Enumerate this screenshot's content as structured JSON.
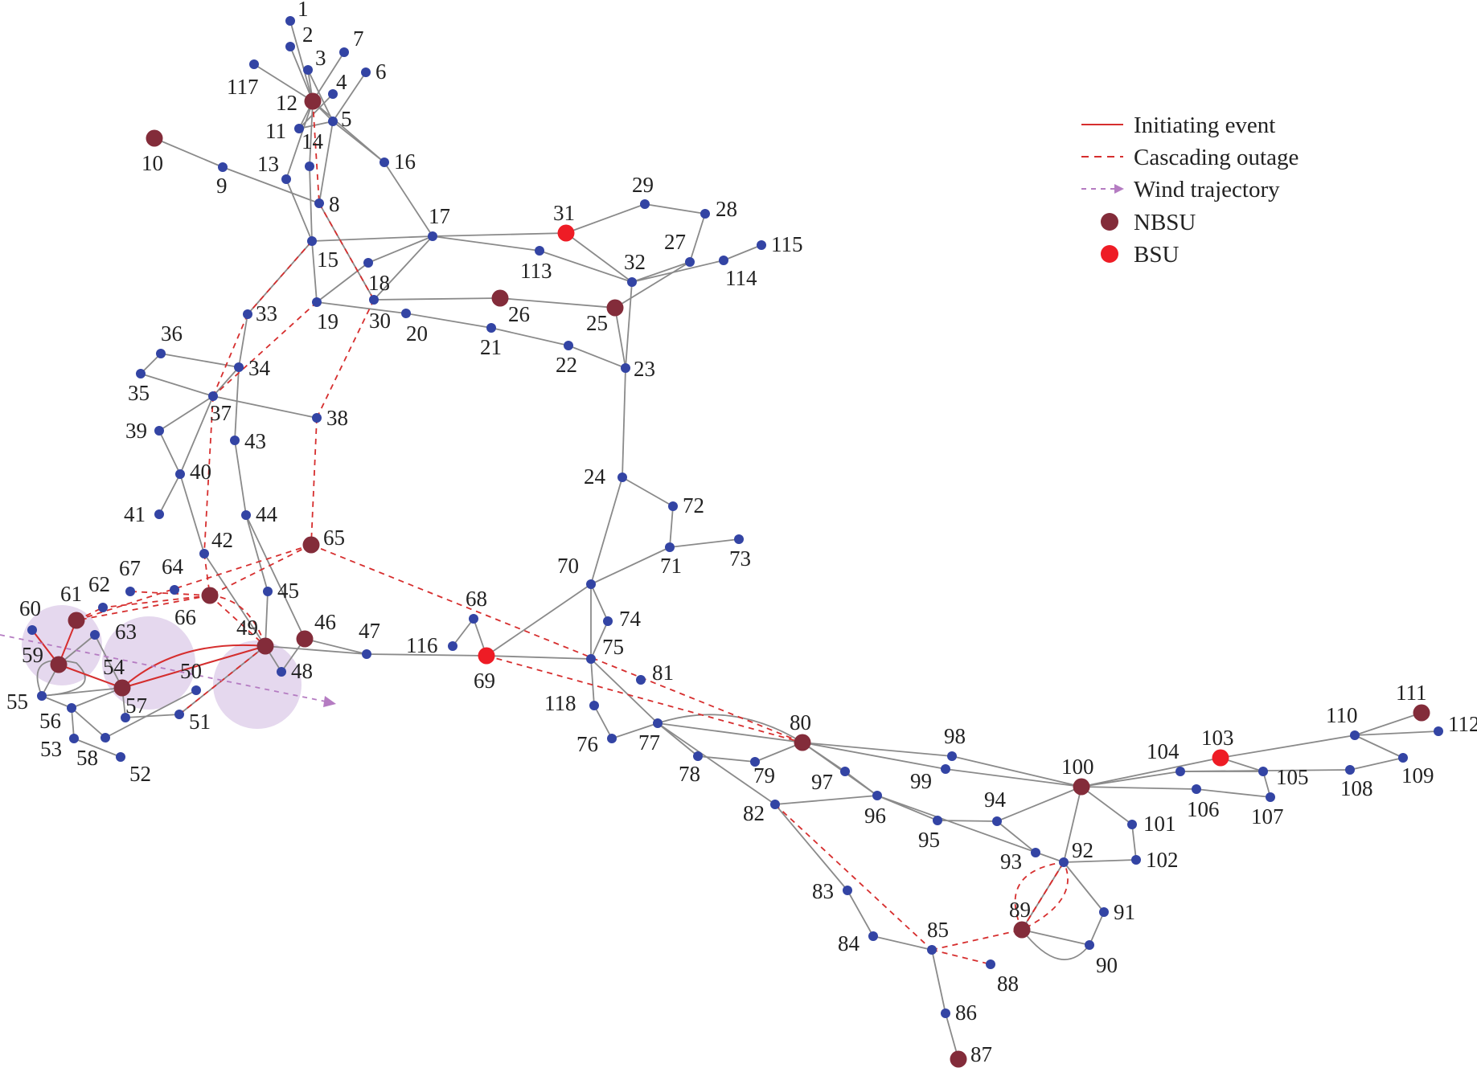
{
  "colors": {
    "background": "#ffffff",
    "line": "#8a8a8a",
    "bus": "#3344a4",
    "nbsu": "#832c3a",
    "bsu": "#ee1c25",
    "initiating": "#d62e2e",
    "cascading": "#d62e2e",
    "wind": "#b57cc2",
    "wind_zone": "#dccbe8"
  },
  "legend": {
    "items": [
      {
        "key": "initiating",
        "label": "Initiating event",
        "kind": "solid-line"
      },
      {
        "key": "cascading",
        "label": "Cascading outage",
        "kind": "dashed-line"
      },
      {
        "key": "wind",
        "label": "Wind trajectory",
        "kind": "dashed-arrow"
      },
      {
        "key": "nbsu",
        "label": "NBSU",
        "kind": "node"
      },
      {
        "key": "bsu",
        "label": "BSU",
        "kind": "node"
      }
    ]
  },
  "network": {
    "nbsu_buses": [
      "10",
      "12",
      "26",
      "25",
      "46",
      "49",
      "54",
      "59",
      "61",
      "65",
      "66",
      "80",
      "87",
      "89",
      "100",
      "111"
    ],
    "bsu_buses": [
      "31",
      "69",
      "103"
    ],
    "buses": [
      {
        "id": "1",
        "label": "1"
      },
      {
        "id": "2",
        "label": "2"
      },
      {
        "id": "3",
        "label": "3"
      },
      {
        "id": "4",
        "label": "4"
      },
      {
        "id": "5",
        "label": "5"
      },
      {
        "id": "6",
        "label": "6"
      },
      {
        "id": "7",
        "label": "7"
      },
      {
        "id": "8",
        "label": "8"
      },
      {
        "id": "9",
        "label": "9"
      },
      {
        "id": "10",
        "label": "10"
      },
      {
        "id": "11",
        "label": "11"
      },
      {
        "id": "12",
        "label": "12"
      },
      {
        "id": "13",
        "label": "13"
      },
      {
        "id": "14",
        "label": "14"
      },
      {
        "id": "15",
        "label": "15"
      },
      {
        "id": "16",
        "label": "16"
      },
      {
        "id": "17",
        "label": "17"
      },
      {
        "id": "18",
        "label": "18"
      },
      {
        "id": "19",
        "label": "19"
      },
      {
        "id": "20",
        "label": "20"
      },
      {
        "id": "21",
        "label": "21"
      },
      {
        "id": "22",
        "label": "22"
      },
      {
        "id": "23",
        "label": "23"
      },
      {
        "id": "24",
        "label": "24"
      },
      {
        "id": "25",
        "label": "25"
      },
      {
        "id": "26",
        "label": "26"
      },
      {
        "id": "27",
        "label": "27"
      },
      {
        "id": "28",
        "label": "28"
      },
      {
        "id": "29",
        "label": "29"
      },
      {
        "id": "30",
        "label": "30"
      },
      {
        "id": "31",
        "label": "31"
      },
      {
        "id": "32",
        "label": "32"
      },
      {
        "id": "33",
        "label": "33"
      },
      {
        "id": "34",
        "label": "34"
      },
      {
        "id": "35",
        "label": "35"
      },
      {
        "id": "36",
        "label": "36"
      },
      {
        "id": "37",
        "label": "37"
      },
      {
        "id": "38",
        "label": "38"
      },
      {
        "id": "39",
        "label": "39"
      },
      {
        "id": "40",
        "label": "40"
      },
      {
        "id": "41",
        "label": "41"
      },
      {
        "id": "42",
        "label": "42"
      },
      {
        "id": "43",
        "label": "43"
      },
      {
        "id": "44",
        "label": "44"
      },
      {
        "id": "45",
        "label": "45"
      },
      {
        "id": "46",
        "label": "46"
      },
      {
        "id": "47",
        "label": "47"
      },
      {
        "id": "48",
        "label": "48"
      },
      {
        "id": "49",
        "label": "49"
      },
      {
        "id": "50",
        "label": "50"
      },
      {
        "id": "51",
        "label": "51"
      },
      {
        "id": "52",
        "label": "52"
      },
      {
        "id": "53",
        "label": "53"
      },
      {
        "id": "54",
        "label": "54"
      },
      {
        "id": "55",
        "label": "55"
      },
      {
        "id": "56",
        "label": "56"
      },
      {
        "id": "57",
        "label": "57"
      },
      {
        "id": "58",
        "label": "58"
      },
      {
        "id": "59",
        "label": "59"
      },
      {
        "id": "60",
        "label": "60"
      },
      {
        "id": "61",
        "label": "61"
      },
      {
        "id": "62",
        "label": "62"
      },
      {
        "id": "63",
        "label": "63"
      },
      {
        "id": "64",
        "label": "64"
      },
      {
        "id": "65",
        "label": "65"
      },
      {
        "id": "66",
        "label": "66"
      },
      {
        "id": "67",
        "label": "67"
      },
      {
        "id": "68",
        "label": "68"
      },
      {
        "id": "69",
        "label": "69"
      },
      {
        "id": "70",
        "label": "70"
      },
      {
        "id": "71",
        "label": "71"
      },
      {
        "id": "72",
        "label": "72"
      },
      {
        "id": "73",
        "label": "73"
      },
      {
        "id": "74",
        "label": "74"
      },
      {
        "id": "75",
        "label": "75"
      },
      {
        "id": "76",
        "label": "76"
      },
      {
        "id": "77",
        "label": "77"
      },
      {
        "id": "78",
        "label": "78"
      },
      {
        "id": "79",
        "label": "79"
      },
      {
        "id": "80",
        "label": "80"
      },
      {
        "id": "81",
        "label": "81"
      },
      {
        "id": "82",
        "label": "82"
      },
      {
        "id": "83",
        "label": "83"
      },
      {
        "id": "84",
        "label": "84"
      },
      {
        "id": "85",
        "label": "85"
      },
      {
        "id": "86",
        "label": "86"
      },
      {
        "id": "87",
        "label": "87"
      },
      {
        "id": "88",
        "label": "88"
      },
      {
        "id": "89",
        "label": "89"
      },
      {
        "id": "90",
        "label": "90"
      },
      {
        "id": "91",
        "label": "91"
      },
      {
        "id": "92",
        "label": "92"
      },
      {
        "id": "93",
        "label": "93"
      },
      {
        "id": "94",
        "label": "94"
      },
      {
        "id": "95",
        "label": "95"
      },
      {
        "id": "96",
        "label": "96"
      },
      {
        "id": "97",
        "label": "97"
      },
      {
        "id": "98",
        "label": "98"
      },
      {
        "id": "99",
        "label": "99"
      },
      {
        "id": "100",
        "label": "100"
      },
      {
        "id": "101",
        "label": "101"
      },
      {
        "id": "102",
        "label": "102"
      },
      {
        "id": "103",
        "label": "103"
      },
      {
        "id": "104",
        "label": "104"
      },
      {
        "id": "105",
        "label": "105"
      },
      {
        "id": "106",
        "label": "106"
      },
      {
        "id": "107",
        "label": "107"
      },
      {
        "id": "108",
        "label": "108"
      },
      {
        "id": "109",
        "label": "109"
      },
      {
        "id": "110",
        "label": "110"
      },
      {
        "id": "111",
        "label": "111"
      },
      {
        "id": "112",
        "label": "112"
      },
      {
        "id": "113",
        "label": "113"
      },
      {
        "id": "114",
        "label": "114"
      },
      {
        "id": "115",
        "label": "115"
      },
      {
        "id": "116",
        "label": "116"
      },
      {
        "id": "117",
        "label": "117"
      },
      {
        "id": "118",
        "label": "118"
      }
    ],
    "lines": [
      [
        "1",
        "12"
      ],
      [
        "2",
        "12"
      ],
      [
        "3",
        "12"
      ],
      [
        "3",
        "5"
      ],
      [
        "4",
        "11"
      ],
      [
        "5",
        "6"
      ],
      [
        "5",
        "12"
      ],
      [
        "7",
        "12"
      ],
      [
        "117",
        "12"
      ],
      [
        "11",
        "12"
      ],
      [
        "11",
        "5"
      ],
      [
        "12",
        "16"
      ],
      [
        "5",
        "16"
      ],
      [
        "12",
        "14"
      ],
      [
        "12",
        "13"
      ],
      [
        "13",
        "15"
      ],
      [
        "14",
        "15"
      ],
      [
        "9",
        "10"
      ],
      [
        "9",
        "8"
      ],
      [
        "8",
        "5"
      ],
      [
        "8",
        "30"
      ],
      [
        "15",
        "17"
      ],
      [
        "15",
        "19"
      ],
      [
        "15",
        "33"
      ],
      [
        "16",
        "17"
      ],
      [
        "17",
        "18"
      ],
      [
        "17",
        "31"
      ],
      [
        "17",
        "113"
      ],
      [
        "17",
        "30"
      ],
      [
        "18",
        "19"
      ],
      [
        "19",
        "20"
      ],
      [
        "20",
        "21"
      ],
      [
        "21",
        "22"
      ],
      [
        "22",
        "23"
      ],
      [
        "26",
        "30"
      ],
      [
        "26",
        "25"
      ],
      [
        "25",
        "27"
      ],
      [
        "25",
        "23"
      ],
      [
        "23",
        "32"
      ],
      [
        "31",
        "29"
      ],
      [
        "29",
        "28"
      ],
      [
        "28",
        "27"
      ],
      [
        "27",
        "32"
      ],
      [
        "31",
        "32"
      ],
      [
        "113",
        "32"
      ],
      [
        "32",
        "114"
      ],
      [
        "114",
        "115"
      ],
      [
        "23",
        "24"
      ],
      [
        "24",
        "72"
      ],
      [
        "24",
        "70"
      ],
      [
        "72",
        "71"
      ],
      [
        "71",
        "73"
      ],
      [
        "71",
        "70"
      ],
      [
        "70",
        "74"
      ],
      [
        "70",
        "75"
      ],
      [
        "70",
        "69"
      ],
      [
        "74",
        "75"
      ],
      [
        "69",
        "75"
      ],
      [
        "68",
        "69"
      ],
      [
        "116",
        "68"
      ],
      [
        "69",
        "47"
      ],
      [
        "75",
        "118"
      ],
      [
        "75",
        "77"
      ],
      [
        "76",
        "118"
      ],
      [
        "76",
        "77"
      ],
      [
        "77",
        "78"
      ],
      [
        "77",
        "82"
      ],
      [
        "78",
        "79"
      ],
      [
        "79",
        "80"
      ],
      [
        "77",
        "80"
      ],
      [
        "80",
        "96"
      ],
      [
        "80",
        "97"
      ],
      [
        "80",
        "98"
      ],
      [
        "80",
        "99"
      ],
      [
        "98",
        "100"
      ],
      [
        "99",
        "100"
      ],
      [
        "97",
        "96"
      ],
      [
        "96",
        "95"
      ],
      [
        "95",
        "94"
      ],
      [
        "94",
        "100"
      ],
      [
        "94",
        "93"
      ],
      [
        "96",
        "92"
      ],
      [
        "100",
        "92"
      ],
      [
        "100",
        "101"
      ],
      [
        "101",
        "102"
      ],
      [
        "102",
        "92"
      ],
      [
        "92",
        "91"
      ],
      [
        "92",
        "89"
      ],
      [
        "91",
        "90"
      ],
      [
        "89",
        "90"
      ],
      [
        "82",
        "83"
      ],
      [
        "83",
        "84"
      ],
      [
        "84",
        "85"
      ],
      [
        "85",
        "86"
      ],
      [
        "86",
        "87"
      ],
      [
        "100",
        "104"
      ],
      [
        "100",
        "103"
      ],
      [
        "100",
        "106"
      ],
      [
        "104",
        "105"
      ],
      [
        "103",
        "105"
      ],
      [
        "105",
        "107"
      ],
      [
        "106",
        "107"
      ],
      [
        "103",
        "110"
      ],
      [
        "104",
        "108"
      ],
      [
        "108",
        "109"
      ],
      [
        "110",
        "109"
      ],
      [
        "110",
        "111"
      ],
      [
        "110",
        "112"
      ],
      [
        "82",
        "96"
      ],
      [
        "33",
        "34"
      ],
      [
        "34",
        "37"
      ],
      [
        "35",
        "37"
      ],
      [
        "36",
        "34"
      ],
      [
        "35",
        "36"
      ],
      [
        "37",
        "38"
      ],
      [
        "37",
        "39"
      ],
      [
        "37",
        "40"
      ],
      [
        "39",
        "40"
      ],
      [
        "40",
        "41"
      ],
      [
        "40",
        "42"
      ],
      [
        "34",
        "43"
      ],
      [
        "43",
        "44"
      ],
      [
        "44",
        "45"
      ],
      [
        "45",
        "49"
      ],
      [
        "44",
        "46"
      ],
      [
        "46",
        "47"
      ],
      [
        "46",
        "48"
      ],
      [
        "49",
        "48"
      ],
      [
        "49",
        "51"
      ],
      [
        "49",
        "54"
      ],
      [
        "42",
        "49"
      ],
      [
        "54",
        "55"
      ],
      [
        "54",
        "56"
      ],
      [
        "54",
        "59"
      ],
      [
        "54",
        "63"
      ],
      [
        "54",
        "57"
      ],
      [
        "59",
        "60"
      ],
      [
        "59",
        "63"
      ],
      [
        "56",
        "53"
      ],
      [
        "56",
        "58"
      ],
      [
        "53",
        "52"
      ],
      [
        "55",
        "56"
      ],
      [
        "55",
        "59"
      ],
      [
        "57",
        "51"
      ],
      [
        "50",
        "58"
      ],
      [
        "49",
        "47"
      ]
    ],
    "initiating_lines": [
      [
        "59",
        "60"
      ],
      [
        "59",
        "61"
      ],
      [
        "59",
        "54"
      ],
      [
        "54",
        "49"
      ]
    ],
    "cascading_lines": [
      [
        "12",
        "8"
      ],
      [
        "8",
        "30"
      ],
      [
        "30",
        "38"
      ],
      [
        "38",
        "65"
      ],
      [
        "65",
        "66"
      ],
      [
        "65",
        "61"
      ],
      [
        "65",
        "80"
      ],
      [
        "15",
        "33"
      ],
      [
        "33",
        "37"
      ],
      [
        "19",
        "37"
      ],
      [
        "37",
        "42"
      ],
      [
        "42",
        "66"
      ],
      [
        "66",
        "61"
      ],
      [
        "66",
        "49"
      ],
      [
        "49",
        "51"
      ],
      [
        "69",
        "80"
      ],
      [
        "82",
        "85"
      ],
      [
        "85",
        "88"
      ],
      [
        "85",
        "89"
      ],
      [
        "89",
        "92"
      ],
      [
        "92",
        "89"
      ],
      [
        "66",
        "62"
      ],
      [
        "61",
        "62"
      ],
      [
        "66",
        "67"
      ]
    ]
  }
}
